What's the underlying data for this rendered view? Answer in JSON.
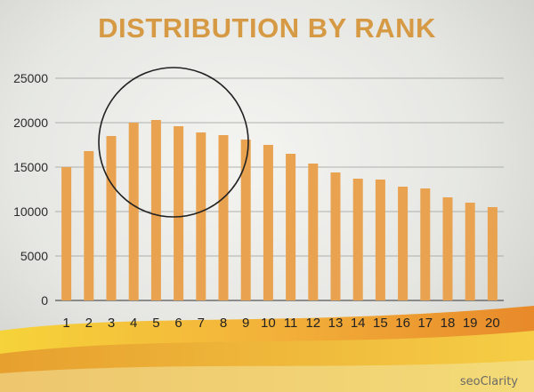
{
  "slide": {
    "logo_text": "seoClarity"
  },
  "chart_data": {
    "type": "bar",
    "title": "DISTRIBUTION BY RANK",
    "xlabel": "",
    "ylabel": "",
    "categories": [
      "1",
      "2",
      "3",
      "4",
      "5",
      "6",
      "7",
      "8",
      "9",
      "10",
      "11",
      "12",
      "13",
      "14",
      "15",
      "16",
      "17",
      "18",
      "19",
      "20"
    ],
    "values": [
      15000,
      16800,
      18500,
      20000,
      20300,
      19600,
      18900,
      18600,
      18100,
      17500,
      16500,
      15400,
      14400,
      13700,
      13600,
      12800,
      12600,
      11600,
      11000,
      10500
    ],
    "ylim": [
      0,
      25000
    ],
    "yticks": [
      "25000",
      "20000",
      "15000",
      "10000",
      "5000",
      "0"
    ],
    "grid": true,
    "legend": "none",
    "bar_color": "#e9a24f",
    "annotation": "circle highlighting ranks 4–9"
  }
}
